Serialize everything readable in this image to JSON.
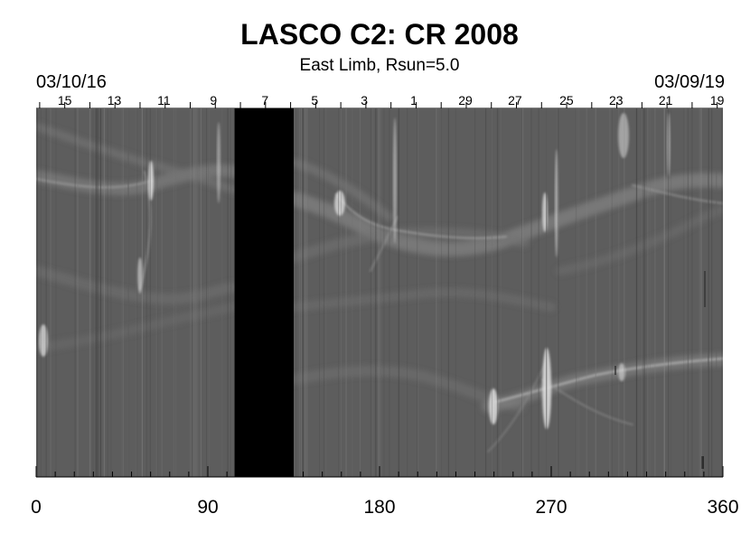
{
  "chart_data": {
    "type": "heatmap",
    "title": "LASCO C2: CR 2008",
    "subtitle": "East Limb, Rsun=5.0",
    "start_date": "03/10/16",
    "end_date": "03/09/19",
    "xlabel": "",
    "ylabel": "",
    "xlim": [
      0,
      360
    ],
    "x_ticks": [
      0,
      90,
      180,
      270,
      360
    ],
    "x_tick_labels": [
      "0",
      "90",
      "180",
      "270",
      "360"
    ],
    "day_labels": [
      {
        "label": "15",
        "x": 15
      },
      {
        "label": "13",
        "x": 41
      },
      {
        "label": "11",
        "x": 67
      },
      {
        "label": "9",
        "x": 93
      },
      {
        "label": "7",
        "x": 120
      },
      {
        "label": "5",
        "x": 146
      },
      {
        "label": "3",
        "x": 172
      },
      {
        "label": "1",
        "x": 198
      },
      {
        "label": "29",
        "x": 225
      },
      {
        "label": "27",
        "x": 251
      },
      {
        "label": "25",
        "x": 278
      },
      {
        "label": "23",
        "x": 304
      },
      {
        "label": "21",
        "x": 330
      },
      {
        "label": "19",
        "x": 357
      }
    ],
    "data_gap": {
      "x_start": 104,
      "x_end": 135
    },
    "colors": {
      "background": "#5d5d5d",
      "gap": "#000000",
      "bright": "#e6e6e6"
    }
  }
}
